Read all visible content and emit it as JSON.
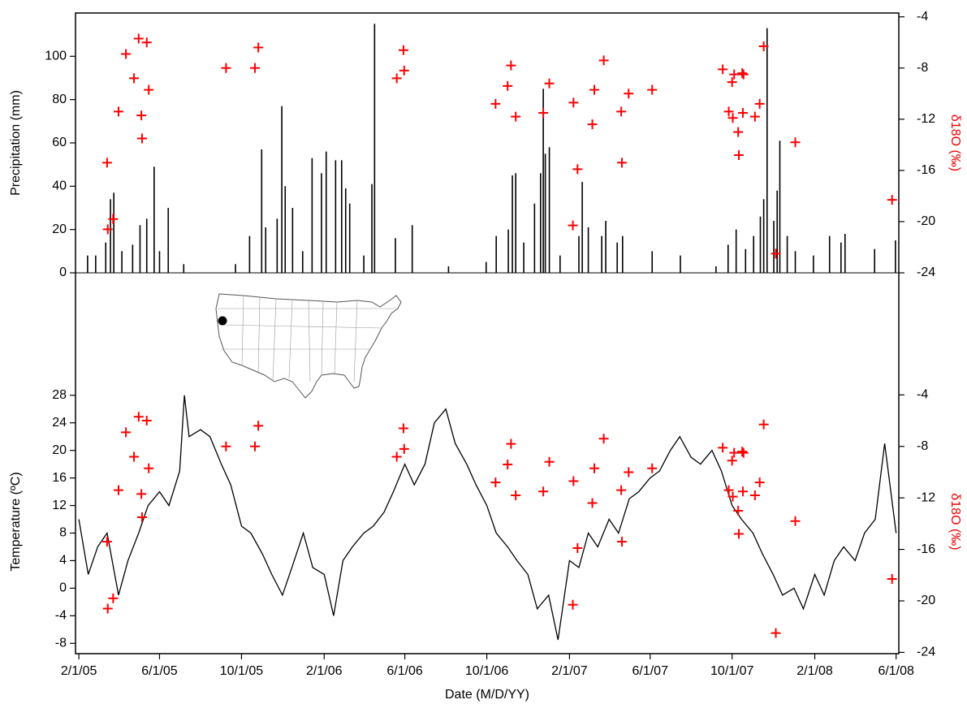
{
  "chart_data": [
    {
      "type": "bar",
      "ylabel": "Precipitation (mm)",
      "y2label": "δ18O (‰)",
      "xlim": [
        "2005-01-27",
        "2008-06-05"
      ],
      "ylim": [
        0,
        120
      ],
      "yticks": [
        0,
        20,
        40,
        60,
        80,
        100
      ],
      "y2lim": [
        -24,
        -3.7
      ],
      "y2ticks": [
        -24,
        -20,
        -16,
        -12,
        -8,
        -4
      ],
      "series": [
        {
          "type": "bar",
          "color": "#000000",
          "x": [
            "2005-02-14",
            "2005-02-26",
            "2005-03-13",
            "2005-03-20",
            "2005-03-25",
            "2005-04-06",
            "2005-04-22",
            "2005-05-03",
            "2005-05-13",
            "2005-05-24",
            "2005-06-01",
            "2005-06-14",
            "2005-07-07",
            "2005-09-22",
            "2005-10-13",
            "2005-10-31",
            "2005-11-06",
            "2005-11-23",
            "2005-11-30",
            "2005-12-05",
            "2005-12-16",
            "2005-12-31",
            "2006-01-14",
            "2006-01-28",
            "2006-02-04",
            "2006-02-18",
            "2006-02-27",
            "2006-03-05",
            "2006-03-11",
            "2006-04-01",
            "2006-04-13",
            "2006-04-17",
            "2006-05-18",
            "2006-06-12",
            "2006-08-05",
            "2006-09-30",
            "2006-10-15",
            "2006-11-02",
            "2006-11-08",
            "2006-11-13",
            "2006-11-25",
            "2006-12-11",
            "2006-12-20",
            "2006-12-24",
            "2006-12-27",
            "2007-01-02",
            "2007-01-18",
            "2007-02-15",
            "2007-02-20",
            "2007-03-01",
            "2007-03-21",
            "2007-03-27",
            "2007-04-13",
            "2007-04-21",
            "2007-06-04",
            "2007-07-16",
            "2007-09-07",
            "2007-09-25",
            "2007-10-07",
            "2007-10-21",
            "2007-11-02",
            "2007-11-12",
            "2007-11-17",
            "2007-11-22",
            "2007-12-02",
            "2007-12-07",
            "2007-12-11",
            "2007-12-22",
            "2008-01-03",
            "2008-01-30",
            "2008-02-23",
            "2008-03-11",
            "2008-03-17",
            "2008-04-30",
            "2008-05-31"
          ],
          "values": [
            8,
            8,
            14,
            34,
            37,
            10,
            13,
            22,
            25,
            49,
            10,
            30,
            4,
            4,
            17,
            57,
            21,
            25,
            77,
            40,
            30,
            10,
            53,
            46,
            56,
            52,
            52,
            39,
            32,
            8,
            41,
            115,
            16,
            22,
            3,
            5,
            17,
            20,
            45,
            46,
            14,
            32,
            46,
            85,
            55,
            58,
            8,
            17,
            42,
            21,
            17,
            24,
            14,
            17,
            10,
            8,
            3,
            13,
            20,
            11,
            17,
            26,
            34,
            113,
            24,
            38,
            61,
            17,
            10,
            8,
            17,
            14,
            18,
            11,
            15
          ]
        },
        {
          "type": "scatter",
          "color": "#ff0000",
          "axis": "y2",
          "x": [
            "2005-03-16",
            "2005-03-24",
            "2005-03-15",
            "2005-04-01",
            "2005-04-12",
            "2005-04-24",
            "2005-05-01",
            "2005-05-05",
            "2005-05-06",
            "2005-05-13",
            "2005-05-16",
            "2005-09-08",
            "2005-10-21",
            "2005-10-26",
            "2006-05-20",
            "2006-05-30",
            "2006-05-31",
            "2006-10-14",
            "2006-11-01",
            "2006-11-06",
            "2006-11-13",
            "2006-12-24",
            "2007-01-02",
            "2007-02-07",
            "2007-02-13",
            "2007-02-06",
            "2007-03-07",
            "2007-03-10",
            "2007-03-24",
            "2007-04-19",
            "2007-04-20",
            "2007-04-30",
            "2007-06-04",
            "2007-09-17",
            "2007-09-26",
            "2007-10-01",
            "2007-10-02",
            "2007-10-04",
            "2007-10-10",
            "2007-10-11",
            "2007-10-16",
            "2007-10-18",
            "2007-10-17",
            "2007-11-04",
            "2007-11-11",
            "2007-11-17",
            "2007-12-05",
            "2008-01-03",
            "2008-05-26"
          ],
          "values": [
            -20.6,
            -19.8,
            -15.4,
            -11.4,
            -6.9,
            -8.8,
            -5.7,
            -11.7,
            -13.5,
            -6.0,
            -9.7,
            -8.0,
            -8.0,
            -6.4,
            -8.8,
            -6.6,
            -8.2,
            -10.8,
            -9.4,
            -7.8,
            -11.8,
            -11.5,
            -9.2,
            -10.7,
            -15.9,
            -20.3,
            -12.4,
            -9.7,
            -7.4,
            -11.4,
            -15.4,
            -10.0,
            -9.7,
            -8.1,
            -11.4,
            -9.1,
            -11.9,
            -8.5,
            -13.0,
            -14.8,
            -8.4,
            -8.5,
            -11.5,
            -11.8,
            -10.8,
            -6.3,
            -22.5,
            -13.8,
            -18.3
          ]
        }
      ]
    },
    {
      "type": "line",
      "ylabel": "Temperature (ºC)",
      "y2label": "δ18O (‰)",
      "xlabel": "Date (M/D/YY)",
      "xlim": [
        "2005-01-27",
        "2008-06-05"
      ],
      "xticks": [
        {
          "value": "2005-02-01",
          "label": "2/1/05"
        },
        {
          "value": "2005-06-01",
          "label": "6/1/05"
        },
        {
          "value": "2005-10-01",
          "label": "10/1/05"
        },
        {
          "value": "2006-02-01",
          "label": "2/1/06"
        },
        {
          "value": "2006-06-01",
          "label": "6/1/06"
        },
        {
          "value": "2006-10-01",
          "label": "10/1/06"
        },
        {
          "value": "2007-02-01",
          "label": "2/1/07"
        },
        {
          "value": "2007-06-01",
          "label": "6/1/07"
        },
        {
          "value": "2007-10-01",
          "label": "10/1/07"
        },
        {
          "value": "2008-02-01",
          "label": "2/1/08"
        },
        {
          "value": "2008-06-01",
          "label": "6/1/08"
        }
      ],
      "ylim": [
        -9.5,
        28.8
      ],
      "yticks": [
        -8,
        -4,
        0,
        4,
        8,
        12,
        16,
        20,
        24,
        28
      ],
      "y2lim": [
        -24.1,
        -3.6
      ],
      "y2ticks": [
        -24,
        -20,
        -16,
        -12,
        -8,
        -4
      ],
      "series": [
        {
          "type": "line",
          "color": "#000000",
          "x": [
            "2005-02-01",
            "2005-02-15",
            "2005-03-01",
            "2005-03-15",
            "2005-04-01",
            "2005-04-15",
            "2005-05-01",
            "2005-05-15",
            "2005-06-01",
            "2005-06-15",
            "2005-07-01",
            "2005-07-08",
            "2005-07-15",
            "2005-08-01",
            "2005-08-15",
            "2005-09-01",
            "2005-09-15",
            "2005-10-01",
            "2005-10-15",
            "2005-11-01",
            "2005-11-15",
            "2005-12-01",
            "2005-12-15",
            "2006-01-01",
            "2006-01-15",
            "2006-02-01",
            "2006-02-15",
            "2006-03-01",
            "2006-03-15",
            "2006-04-01",
            "2006-04-15",
            "2006-05-01",
            "2006-05-15",
            "2006-06-01",
            "2006-06-15",
            "2006-07-01",
            "2006-07-15",
            "2006-08-01",
            "2006-08-15",
            "2006-09-01",
            "2006-09-15",
            "2006-10-01",
            "2006-10-15",
            "2006-11-01",
            "2006-11-15",
            "2006-12-01",
            "2006-12-15",
            "2007-01-01",
            "2007-01-15",
            "2007-02-01",
            "2007-02-15",
            "2007-03-01",
            "2007-03-15",
            "2007-04-01",
            "2007-04-15",
            "2007-05-01",
            "2007-05-15",
            "2007-06-01",
            "2007-06-15",
            "2007-07-01",
            "2007-07-15",
            "2007-08-01",
            "2007-08-15",
            "2007-09-01",
            "2007-09-15",
            "2007-10-01",
            "2007-10-15",
            "2007-11-01",
            "2007-11-15",
            "2007-12-01",
            "2007-12-15",
            "2008-01-01",
            "2008-01-15",
            "2008-02-01",
            "2008-02-15",
            "2008-03-01",
            "2008-03-15",
            "2008-04-01",
            "2008-04-15",
            "2008-05-01",
            "2008-05-15",
            "2008-06-01"
          ],
          "values": [
            10,
            2,
            6,
            8,
            -1,
            4,
            8,
            12,
            14,
            12,
            17,
            28,
            22,
            23,
            22,
            18,
            15,
            9,
            8,
            5,
            2,
            -1,
            3,
            8,
            3,
            2,
            -4,
            4,
            6,
            8,
            9,
            11,
            14,
            18,
            15,
            18,
            24,
            26,
            21,
            18,
            15,
            12,
            8,
            6,
            4,
            2,
            -3,
            -1,
            -7.5,
            4,
            3,
            8,
            6,
            10,
            8,
            13,
            14,
            16,
            17,
            20,
            22,
            19,
            18,
            20,
            17,
            12,
            10,
            8,
            5,
            2,
            -1,
            0,
            -3,
            2,
            -1,
            4,
            6,
            4,
            8,
            10,
            21,
            8
          ]
        },
        {
          "type": "scatter",
          "color": "#ff0000",
          "axis": "y2",
          "x": [
            "2005-03-16",
            "2005-03-24",
            "2005-03-15",
            "2005-04-01",
            "2005-04-12",
            "2005-04-24",
            "2005-05-01",
            "2005-05-05",
            "2005-05-06",
            "2005-05-13",
            "2005-05-16",
            "2005-09-08",
            "2005-10-21",
            "2005-10-26",
            "2006-05-20",
            "2006-05-30",
            "2006-05-31",
            "2006-10-14",
            "2006-11-01",
            "2006-11-06",
            "2006-11-13",
            "2006-12-24",
            "2007-01-02",
            "2007-02-07",
            "2007-02-13",
            "2007-02-06",
            "2007-03-07",
            "2007-03-10",
            "2007-03-24",
            "2007-04-19",
            "2007-04-20",
            "2007-04-30",
            "2007-06-04",
            "2007-09-17",
            "2007-09-26",
            "2007-10-01",
            "2007-10-02",
            "2007-10-04",
            "2007-10-10",
            "2007-10-11",
            "2007-10-16",
            "2007-10-18",
            "2007-10-17",
            "2007-11-04",
            "2007-11-11",
            "2007-11-17",
            "2007-12-05",
            "2008-01-03",
            "2008-05-26"
          ],
          "values": [
            -20.6,
            -19.8,
            -15.4,
            -11.4,
            -6.9,
            -8.8,
            -5.7,
            -11.7,
            -13.5,
            -6.0,
            -9.7,
            -8.0,
            -8.0,
            -6.4,
            -8.8,
            -6.6,
            -8.2,
            -10.8,
            -9.4,
            -7.8,
            -11.8,
            -11.5,
            -9.2,
            -10.7,
            -15.9,
            -20.3,
            -12.4,
            -9.7,
            -7.4,
            -11.4,
            -15.4,
            -10.0,
            -9.7,
            -8.1,
            -11.4,
            -9.1,
            -11.9,
            -8.5,
            -13.0,
            -14.8,
            -8.4,
            -8.5,
            -11.5,
            -11.8,
            -10.8,
            -6.3,
            -22.5,
            -13.8,
            -18.3
          ]
        }
      ]
    }
  ]
}
